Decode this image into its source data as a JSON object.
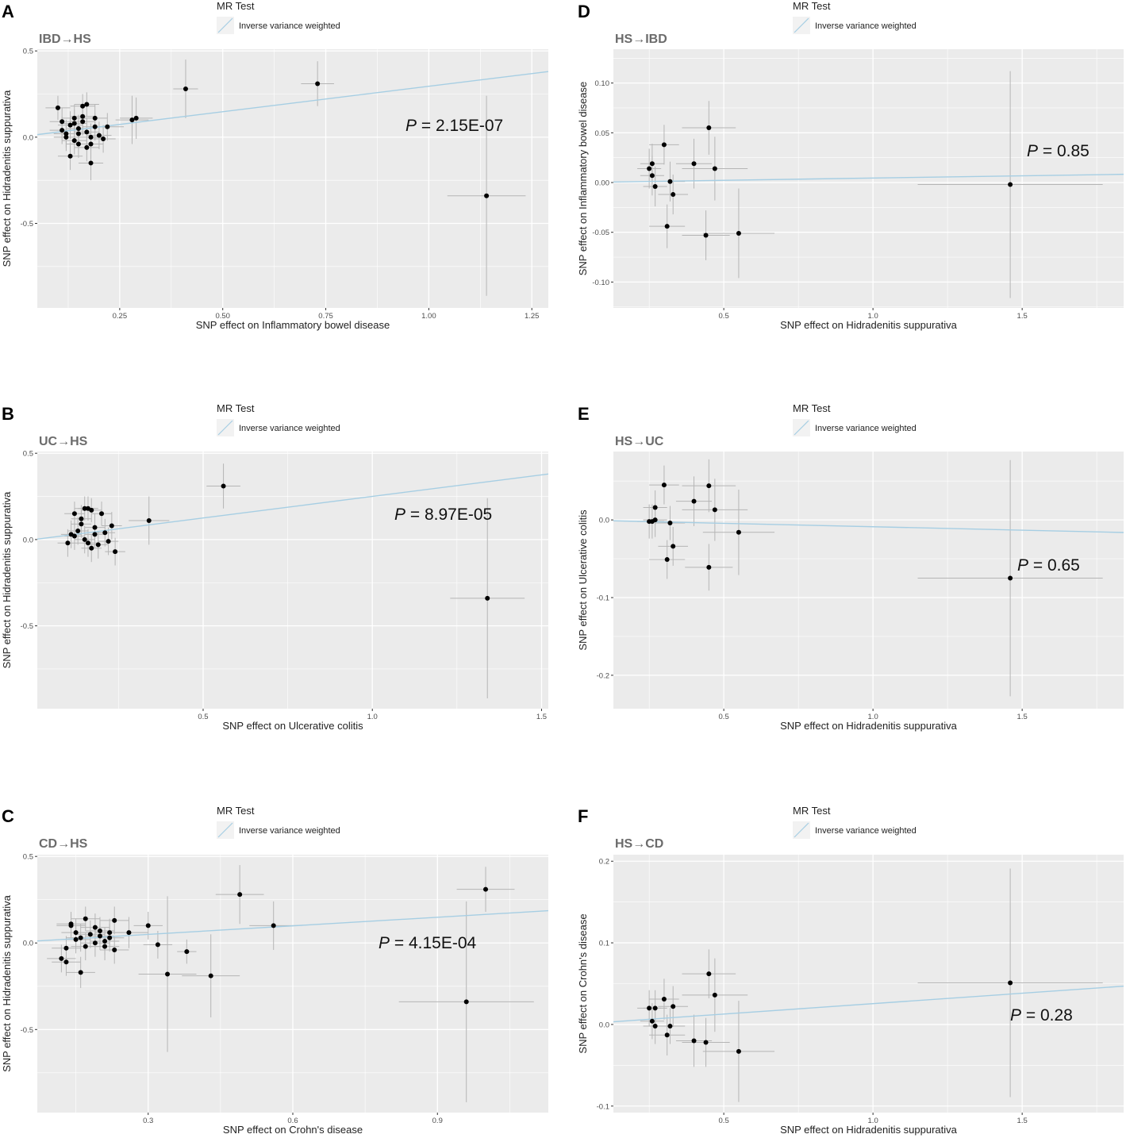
{
  "legend": {
    "title": "MR Test",
    "label": "Inverse variance weighted"
  },
  "colors": {
    "ivw_line": "#a6cee3",
    "panel_bg": "#ebebeb",
    "grid": "#ffffff",
    "errorbar": "#b5b5b5",
    "point": "#000000"
  },
  "chart_data": [
    {
      "letter": "A",
      "subtitle": "IBD→HS",
      "type": "scatter",
      "xlabel": "SNP effect on Inflammatory bowel disease",
      "ylabel": "SNP effect on Hidradenitis suppurativa",
      "xlim": [
        0.05,
        1.29
      ],
      "ylim": [
        -0.99,
        0.51
      ],
      "xticks": [
        0.25,
        0.5,
        0.75,
        1.0
      ],
      "xtick_labels": [
        "0.25",
        "0.50",
        "0.75",
        "1.00"
      ],
      "xticks_extra": [
        1.25
      ],
      "xtick_extra_labels": [
        "1.25"
      ],
      "yticks": [
        0.5,
        0.0,
        -0.5
      ],
      "ytick_labels": [
        "0.5",
        "0.0",
        "-0.5"
      ],
      "slope": 0.295,
      "p_italic": "P",
      "p_text": " = 2.15E-07",
      "points": [
        [
          0.41,
          0.28,
          0.03,
          0.17
        ],
        [
          0.73,
          0.31,
          0.04,
          0.13
        ],
        [
          1.14,
          -0.34,
          0.095,
          0.58
        ],
        [
          0.29,
          0.11,
          0.04,
          0.12
        ],
        [
          0.28,
          0.1,
          0.04,
          0.14
        ],
        [
          0.22,
          0.06,
          0.04,
          0.08
        ],
        [
          0.1,
          0.17,
          0.03,
          0.07
        ],
        [
          0.11,
          0.04,
          0.03,
          0.08
        ],
        [
          0.12,
          0.02,
          0.03,
          0.08
        ],
        [
          0.13,
          0.07,
          0.03,
          0.08
        ],
        [
          0.14,
          0.11,
          0.03,
          0.08
        ],
        [
          0.15,
          0.05,
          0.03,
          0.08
        ],
        [
          0.16,
          0.18,
          0.03,
          0.07
        ],
        [
          0.17,
          0.19,
          0.03,
          0.07
        ],
        [
          0.14,
          -0.02,
          0.03,
          0.08
        ],
        [
          0.15,
          -0.04,
          0.03,
          0.08
        ],
        [
          0.16,
          0.09,
          0.03,
          0.08
        ],
        [
          0.17,
          0.03,
          0.03,
          0.08
        ],
        [
          0.18,
          -0.15,
          0.03,
          0.1
        ],
        [
          0.19,
          0.11,
          0.03,
          0.08
        ],
        [
          0.2,
          0.01,
          0.03,
          0.08
        ],
        [
          0.18,
          -0.04,
          0.03,
          0.08
        ],
        [
          0.13,
          -0.11,
          0.03,
          0.08
        ],
        [
          0.21,
          -0.01,
          0.03,
          0.08
        ],
        [
          0.12,
          0.0,
          0.03,
          0.08
        ],
        [
          0.11,
          0.09,
          0.03,
          0.08
        ],
        [
          0.19,
          0.06,
          0.03,
          0.08
        ],
        [
          0.16,
          0.12,
          0.03,
          0.08
        ],
        [
          0.15,
          0.02,
          0.03,
          0.08
        ],
        [
          0.14,
          0.08,
          0.03,
          0.08
        ],
        [
          0.17,
          -0.06,
          0.03,
          0.08
        ],
        [
          0.18,
          0.0,
          0.03,
          0.08
        ]
      ]
    },
    {
      "letter": "B",
      "subtitle": "UC→HS",
      "type": "scatter",
      "xlabel": "SNP effect on Ulcerative colitis",
      "ylabel": "SNP effect on Hidradenitis suppurativa",
      "xlim": [
        0.01,
        1.52
      ],
      "ylim": [
        -0.98,
        0.51
      ],
      "xticks": [
        0.5,
        1.0,
        1.5
      ],
      "xtick_labels": [
        "0.5",
        "1.0",
        "1.5"
      ],
      "xticks_extra": [],
      "xtick_extra_labels": [],
      "yticks": [
        0.5,
        0.0,
        -0.5
      ],
      "ytick_labels": [
        "0.5",
        "0.0",
        "-0.5"
      ],
      "slope": 0.25,
      "p_italic": "P",
      "p_text": " = 8.97E-05",
      "points": [
        [
          0.56,
          0.31,
          0.05,
          0.13
        ],
        [
          0.34,
          0.11,
          0.06,
          0.14
        ],
        [
          1.34,
          -0.34,
          0.11,
          0.58
        ],
        [
          0.1,
          -0.02,
          0.03,
          0.08
        ],
        [
          0.11,
          0.03,
          0.03,
          0.08
        ],
        [
          0.12,
          0.15,
          0.03,
          0.07
        ],
        [
          0.13,
          0.05,
          0.03,
          0.08
        ],
        [
          0.14,
          0.12,
          0.03,
          0.08
        ],
        [
          0.15,
          0.18,
          0.03,
          0.07
        ],
        [
          0.16,
          0.18,
          0.03,
          0.07
        ],
        [
          0.17,
          0.17,
          0.03,
          0.07
        ],
        [
          0.18,
          0.07,
          0.03,
          0.08
        ],
        [
          0.19,
          -0.03,
          0.03,
          0.08
        ],
        [
          0.2,
          0.15,
          0.03,
          0.07
        ],
        [
          0.21,
          0.04,
          0.03,
          0.08
        ],
        [
          0.22,
          -0.01,
          0.03,
          0.08
        ],
        [
          0.23,
          0.08,
          0.03,
          0.08
        ],
        [
          0.24,
          -0.07,
          0.03,
          0.08
        ],
        [
          0.15,
          0.0,
          0.03,
          0.08
        ],
        [
          0.16,
          -0.02,
          0.03,
          0.08
        ],
        [
          0.17,
          -0.05,
          0.03,
          0.08
        ],
        [
          0.18,
          0.03,
          0.03,
          0.08
        ],
        [
          0.12,
          0.02,
          0.03,
          0.08
        ],
        [
          0.14,
          0.09,
          0.03,
          0.08
        ]
      ]
    },
    {
      "letter": "C",
      "subtitle": "CD→HS",
      "type": "scatter",
      "xlabel": "SNP effect on Crohn's disease",
      "ylabel": "SNP effect on Hidradenitis suppurativa",
      "xlim": [
        0.07,
        1.13
      ],
      "ylim": [
        -0.98,
        0.51
      ],
      "xticks": [
        0.3,
        0.6,
        0.9
      ],
      "xtick_labels": [
        "0.3",
        "0.6",
        "0.9"
      ],
      "xticks_extra": [],
      "xtick_extra_labels": [],
      "yticks": [
        0.5,
        0.0,
        -0.5
      ],
      "ytick_labels": [
        "0.5",
        "0.0",
        "-0.5"
      ],
      "slope": 0.165,
      "p_italic": "P",
      "p_text": " = 4.15E-04",
      "points": [
        [
          0.49,
          0.28,
          0.05,
          0.17
        ],
        [
          0.56,
          0.1,
          0.05,
          0.14
        ],
        [
          1.0,
          0.31,
          0.06,
          0.13
        ],
        [
          0.96,
          -0.34,
          0.14,
          0.58
        ],
        [
          0.3,
          0.1,
          0.03,
          0.08
        ],
        [
          0.32,
          -0.01,
          0.03,
          0.08
        ],
        [
          0.34,
          -0.18,
          0.06,
          0.45
        ],
        [
          0.38,
          -0.05,
          0.02,
          0.07
        ],
        [
          0.43,
          -0.19,
          0.06,
          0.24
        ],
        [
          0.26,
          0.06,
          0.04,
          0.09
        ],
        [
          0.13,
          -0.03,
          0.03,
          0.07
        ],
        [
          0.14,
          0.1,
          0.03,
          0.07
        ],
        [
          0.15,
          0.02,
          0.03,
          0.08
        ],
        [
          0.16,
          -0.17,
          0.03,
          0.09
        ],
        [
          0.17,
          0.14,
          0.03,
          0.07
        ],
        [
          0.18,
          0.05,
          0.03,
          0.08
        ],
        [
          0.19,
          0.0,
          0.03,
          0.08
        ],
        [
          0.2,
          0.07,
          0.03,
          0.08
        ],
        [
          0.21,
          -0.02,
          0.03,
          0.08
        ],
        [
          0.22,
          0.03,
          0.03,
          0.08
        ],
        [
          0.23,
          0.13,
          0.03,
          0.08
        ],
        [
          0.14,
          0.11,
          0.03,
          0.07
        ],
        [
          0.15,
          0.06,
          0.03,
          0.08
        ],
        [
          0.16,
          0.03,
          0.03,
          0.08
        ],
        [
          0.17,
          -0.02,
          0.03,
          0.08
        ],
        [
          0.12,
          -0.09,
          0.03,
          0.08
        ],
        [
          0.13,
          -0.11,
          0.03,
          0.08
        ],
        [
          0.22,
          0.06,
          0.03,
          0.08
        ],
        [
          0.23,
          -0.04,
          0.03,
          0.08
        ],
        [
          0.19,
          0.09,
          0.03,
          0.08
        ],
        [
          0.2,
          0.04,
          0.03,
          0.08
        ],
        [
          0.21,
          0.01,
          0.03,
          0.08
        ]
      ]
    },
    {
      "letter": "D",
      "subtitle": "HS→IBD",
      "type": "scatter",
      "xlabel": "SNP effect on Hidradenitis suppurativa",
      "ylabel": "SNP effect on Inflammatory bowel disease",
      "xlim": [
        0.13,
        1.84
      ],
      "ylim": [
        -0.126,
        0.134
      ],
      "xticks": [
        0.5,
        1.0,
        1.5
      ],
      "xtick_labels": [
        "0.5",
        "1.0",
        "1.5"
      ],
      "xticks_extra": [],
      "xtick_extra_labels": [],
      "yticks": [
        0.1,
        0.05,
        0.0,
        -0.05,
        -0.1
      ],
      "ytick_labels": [
        "0.10",
        "0.05",
        "0.00",
        "-0.05",
        "-0.10"
      ],
      "slope": 0.0045,
      "p_italic": "P",
      "p_text": " = 0.85",
      "points": [
        [
          1.46,
          -0.002,
          0.31,
          0.114
        ],
        [
          0.45,
          0.055,
          0.09,
          0.027
        ],
        [
          0.47,
          0.014,
          0.11,
          0.032
        ],
        [
          0.55,
          -0.051,
          0.12,
          0.045
        ],
        [
          0.44,
          -0.053,
          0.08,
          0.025
        ],
        [
          0.4,
          0.019,
          0.06,
          0.025
        ],
        [
          0.3,
          0.038,
          0.05,
          0.02
        ],
        [
          0.31,
          -0.044,
          0.06,
          0.022
        ],
        [
          0.33,
          -0.012,
          0.05,
          0.02
        ],
        [
          0.32,
          0.001,
          0.05,
          0.02
        ],
        [
          0.26,
          0.019,
          0.04,
          0.02
        ],
        [
          0.25,
          0.014,
          0.04,
          0.02
        ],
        [
          0.27,
          -0.004,
          0.04,
          0.02
        ],
        [
          0.26,
          0.007,
          0.04,
          0.02
        ]
      ]
    },
    {
      "letter": "E",
      "subtitle": "HS→UC",
      "type": "scatter",
      "xlabel": "SNP effect on Hidradenitis suppurativa",
      "ylabel": "SNP effect on Ulcerative colitis",
      "xlim": [
        0.13,
        1.84
      ],
      "ylim": [
        -0.243,
        0.088
      ],
      "xticks": [
        0.5,
        1.0,
        1.5
      ],
      "xtick_labels": [
        "0.5",
        "1.0",
        "1.5"
      ],
      "xticks_extra": [],
      "xtick_extra_labels": [],
      "yticks": [
        0.0,
        -0.1,
        -0.2
      ],
      "ytick_labels": [
        "0.0",
        "-0.1",
        "-0.2"
      ],
      "slope": -0.0088,
      "p_italic": "P",
      "p_text": " = 0.65",
      "points": [
        [
          1.46,
          -0.075,
          0.31,
          0.152
        ],
        [
          0.45,
          0.044,
          0.09,
          0.034
        ],
        [
          0.47,
          0.013,
          0.11,
          0.04
        ],
        [
          0.55,
          -0.016,
          0.12,
          0.055
        ],
        [
          0.45,
          -0.061,
          0.08,
          0.03
        ],
        [
          0.4,
          0.024,
          0.06,
          0.032
        ],
        [
          0.3,
          0.045,
          0.05,
          0.025
        ],
        [
          0.33,
          -0.034,
          0.05,
          0.025
        ],
        [
          0.31,
          -0.051,
          0.06,
          0.025
        ],
        [
          0.32,
          -0.004,
          0.05,
          0.022
        ],
        [
          0.27,
          0.016,
          0.04,
          0.022
        ],
        [
          0.26,
          -0.002,
          0.04,
          0.022
        ],
        [
          0.25,
          -0.002,
          0.04,
          0.022
        ],
        [
          0.27,
          0.0,
          0.04,
          0.022
        ]
      ]
    },
    {
      "letter": "F",
      "subtitle": "HS→CD",
      "type": "scatter",
      "xlabel": "SNP effect on Hidradenitis suppurativa",
      "ylabel": "SNP effect on Crohn's disease",
      "xlim": [
        0.13,
        1.84
      ],
      "ylim": [
        -0.108,
        0.208
      ],
      "xticks": [
        0.5,
        1.0,
        1.5
      ],
      "xtick_labels": [
        "0.5",
        "1.0",
        "1.5"
      ],
      "xticks_extra": [],
      "xtick_extra_labels": [],
      "yticks": [
        0.2,
        0.1,
        0.0,
        -0.1
      ],
      "ytick_labels": [
        "0.2",
        "0.1",
        "0.0",
        "-0.1"
      ],
      "slope": 0.0255,
      "p_italic": "P",
      "p_text": " = 0.28",
      "points": [
        [
          1.46,
          0.051,
          0.31,
          0.14
        ],
        [
          0.45,
          0.062,
          0.09,
          0.03
        ],
        [
          0.47,
          0.036,
          0.11,
          0.045
        ],
        [
          0.55,
          -0.033,
          0.12,
          0.062
        ],
        [
          0.44,
          -0.022,
          0.08,
          0.03
        ],
        [
          0.4,
          -0.02,
          0.06,
          0.032
        ],
        [
          0.3,
          0.031,
          0.05,
          0.025
        ],
        [
          0.33,
          0.022,
          0.05,
          0.025
        ],
        [
          0.31,
          -0.013,
          0.06,
          0.025
        ],
        [
          0.32,
          -0.002,
          0.05,
          0.022
        ],
        [
          0.25,
          0.02,
          0.04,
          0.022
        ],
        [
          0.27,
          0.02,
          0.04,
          0.022
        ],
        [
          0.26,
          0.004,
          0.04,
          0.022
        ],
        [
          0.27,
          -0.002,
          0.04,
          0.022
        ]
      ]
    }
  ]
}
